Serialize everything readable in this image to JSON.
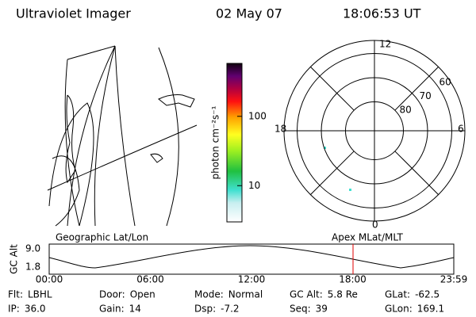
{
  "header": {
    "title": "Ultraviolet Imager",
    "date": "02 May 07",
    "time": "18:06:53 UT"
  },
  "colorbar": {
    "label": "photon cm⁻²s⁻¹",
    "scale": "log",
    "lim": [
      3,
      580
    ],
    "ticks": [
      10,
      100
    ]
  },
  "polar": {
    "mlt_labels": {
      "top": "12",
      "left": "18",
      "right": "6",
      "bottom": "0"
    },
    "lat_rings": [
      80,
      70,
      60
    ]
  },
  "strip": {
    "left_title": "Geographic Lat/Lon",
    "right_title": "Apex MLat/MLT",
    "y_label": "GC Alt",
    "y_labels": [
      "9.0",
      "1.8"
    ],
    "x_labels": [
      "00:00",
      "06:00",
      "12:00",
      "18:00",
      "23:59"
    ]
  },
  "footer": {
    "rows": [
      [
        {
          "label": "Flt:",
          "value": "LBHL"
        },
        {
          "label": "Door:",
          "value": "Open"
        },
        {
          "label": "Mode:",
          "value": "Normal"
        },
        {
          "label": "GC Alt:",
          "value": "5.8 Re"
        },
        {
          "label": "GLat:",
          "value": "-62.5"
        }
      ],
      [
        {
          "label": "IP:",
          "value": "36.0"
        },
        {
          "label": "Gain:",
          "value": "14"
        },
        {
          "label": "Dsp:",
          "value": "-7.2"
        },
        {
          "label": "Seq:",
          "value": "39"
        },
        {
          "label": "GLon:",
          "value": "169.1"
        }
      ]
    ]
  }
}
